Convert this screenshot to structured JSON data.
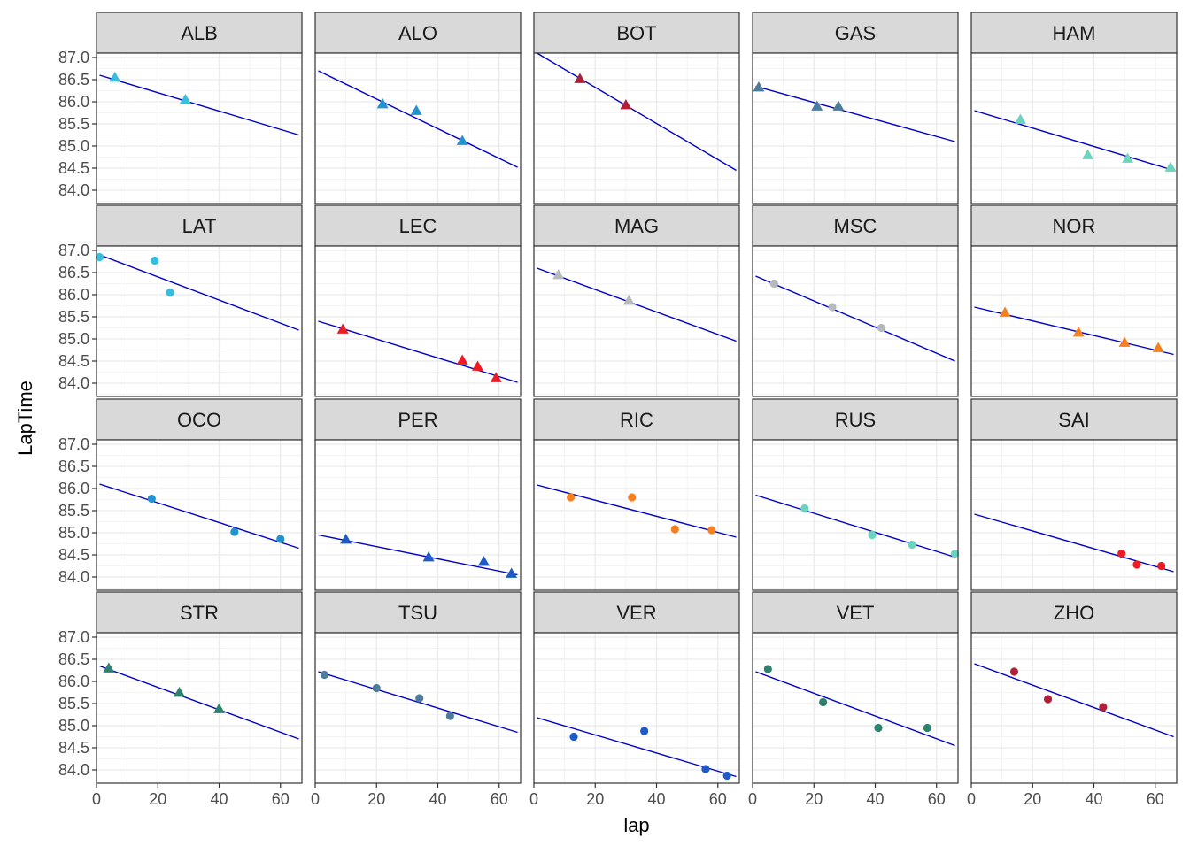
{
  "chart_data": {
    "type": "scatter",
    "xlabel": "lap",
    "ylabel": "LapTime",
    "xlim": [
      0,
      67
    ],
    "ylim": [
      83.7,
      87.1
    ],
    "x_ticks": [
      "0",
      "20",
      "40",
      "60"
    ],
    "y_ticks": [
      "84.0",
      "84.5",
      "85.0",
      "85.5",
      "86.0",
      "86.5",
      "87.0"
    ],
    "x_tick_values": [
      0,
      20,
      40,
      60
    ],
    "y_tick_values": [
      84.0,
      84.5,
      85.0,
      85.5,
      86.0,
      86.5,
      87.0
    ],
    "grid": true,
    "trend_line_color": "#0000CC",
    "facets": [
      {
        "label": "ALB",
        "color": "#37BEDD",
        "shape": "triangle",
        "points": [
          {
            "x": 6,
            "y": 86.55
          },
          {
            "x": 29,
            "y": 86.05
          }
        ],
        "fit": {
          "x": [
            1,
            66
          ],
          "y": [
            86.6,
            85.25
          ]
        }
      },
      {
        "label": "ALO",
        "color": "#2293D1",
        "shape": "triangle",
        "points": [
          {
            "x": 22,
            "y": 85.95
          },
          {
            "x": 33,
            "y": 85.8
          },
          {
            "x": 48,
            "y": 85.12
          }
        ],
        "fit": {
          "x": [
            1,
            66
          ],
          "y": [
            86.7,
            84.52
          ]
        }
      },
      {
        "label": "BOT",
        "color": "#B12039",
        "shape": "triangle",
        "points": [
          {
            "x": 15,
            "y": 86.52
          },
          {
            "x": 30,
            "y": 85.93
          }
        ],
        "fit": {
          "x": [
            1,
            66
          ],
          "y": [
            87.1,
            84.45
          ]
        }
      },
      {
        "label": "GAS",
        "color": "#4E7C9B",
        "shape": "triangle",
        "points": [
          {
            "x": 2,
            "y": 86.33
          },
          {
            "x": 21,
            "y": 85.9
          },
          {
            "x": 28,
            "y": 85.9
          }
        ],
        "fit": {
          "x": [
            1,
            66
          ],
          "y": [
            86.35,
            85.1
          ]
        }
      },
      {
        "label": "HAM",
        "color": "#6CD3BF",
        "shape": "triangle",
        "points": [
          {
            "x": 16,
            "y": 85.6
          },
          {
            "x": 38,
            "y": 84.8
          },
          {
            "x": 51,
            "y": 84.72
          },
          {
            "x": 65,
            "y": 84.52
          }
        ],
        "fit": {
          "x": [
            1,
            66
          ],
          "y": [
            85.8,
            84.45
          ]
        }
      },
      {
        "label": "LAT",
        "color": "#37BEDD",
        "shape": "circle",
        "points": [
          {
            "x": 1,
            "y": 86.85
          },
          {
            "x": 19,
            "y": 86.77
          },
          {
            "x": 24,
            "y": 86.05
          }
        ],
        "fit": {
          "x": [
            1,
            66
          ],
          "y": [
            86.9,
            85.2
          ]
        }
      },
      {
        "label": "LEC",
        "color": "#ED1C24",
        "shape": "triangle",
        "points": [
          {
            "x": 9,
            "y": 85.22
          },
          {
            "x": 48,
            "y": 84.52
          },
          {
            "x": 53,
            "y": 84.38
          },
          {
            "x": 59,
            "y": 84.12
          }
        ],
        "fit": {
          "x": [
            1,
            66
          ],
          "y": [
            85.4,
            84.02
          ]
        }
      },
      {
        "label": "MAG",
        "color": "#B6BABD",
        "shape": "triangle",
        "points": [
          {
            "x": 8,
            "y": 86.45
          },
          {
            "x": 31,
            "y": 85.87
          }
        ],
        "fit": {
          "x": [
            1,
            66
          ],
          "y": [
            86.6,
            84.95
          ]
        }
      },
      {
        "label": "MSC",
        "color": "#B6BABD",
        "shape": "circle",
        "points": [
          {
            "x": 7,
            "y": 86.25
          },
          {
            "x": 26,
            "y": 85.72
          },
          {
            "x": 42,
            "y": 85.25
          }
        ],
        "fit": {
          "x": [
            1,
            66
          ],
          "y": [
            86.42,
            84.5
          ]
        }
      },
      {
        "label": "NOR",
        "color": "#F58020",
        "shape": "triangle",
        "points": [
          {
            "x": 11,
            "y": 85.6
          },
          {
            "x": 35,
            "y": 85.15
          },
          {
            "x": 50,
            "y": 84.92
          },
          {
            "x": 61,
            "y": 84.8
          }
        ],
        "fit": {
          "x": [
            1,
            66
          ],
          "y": [
            85.72,
            84.65
          ]
        }
      },
      {
        "label": "OCO",
        "color": "#2293D1",
        "shape": "circle",
        "points": [
          {
            "x": 18,
            "y": 85.77
          },
          {
            "x": 45,
            "y": 85.02
          },
          {
            "x": 60,
            "y": 84.86
          }
        ],
        "fit": {
          "x": [
            1,
            66
          ],
          "y": [
            86.1,
            84.65
          ]
        }
      },
      {
        "label": "PER",
        "color": "#1E5BC6",
        "shape": "triangle",
        "points": [
          {
            "x": 10,
            "y": 84.85
          },
          {
            "x": 37,
            "y": 84.45
          },
          {
            "x": 55,
            "y": 84.35
          },
          {
            "x": 64,
            "y": 84.08
          }
        ],
        "fit": {
          "x": [
            1,
            66
          ],
          "y": [
            84.95,
            84.05
          ]
        }
      },
      {
        "label": "RIC",
        "color": "#F58020",
        "shape": "circle",
        "points": [
          {
            "x": 12,
            "y": 85.8
          },
          {
            "x": 32,
            "y": 85.8
          },
          {
            "x": 46,
            "y": 85.08
          },
          {
            "x": 58,
            "y": 85.06
          }
        ],
        "fit": {
          "x": [
            1,
            66
          ],
          "y": [
            86.08,
            84.9
          ]
        }
      },
      {
        "label": "RUS",
        "color": "#6CD3BF",
        "shape": "circle",
        "points": [
          {
            "x": 17,
            "y": 85.55
          },
          {
            "x": 39,
            "y": 84.95
          },
          {
            "x": 52,
            "y": 84.73
          },
          {
            "x": 66,
            "y": 84.53
          }
        ],
        "fit": {
          "x": [
            1,
            66
          ],
          "y": [
            85.85,
            84.45
          ]
        }
      },
      {
        "label": "SAI",
        "color": "#ED1C24",
        "shape": "circle",
        "points": [
          {
            "x": 49,
            "y": 84.53
          },
          {
            "x": 54,
            "y": 84.28
          },
          {
            "x": 62,
            "y": 84.25
          }
        ],
        "fit": {
          "x": [
            1,
            66
          ],
          "y": [
            85.42,
            84.12
          ]
        }
      },
      {
        "label": "STR",
        "color": "#2D826D",
        "shape": "triangle",
        "points": [
          {
            "x": 4,
            "y": 86.3
          },
          {
            "x": 27,
            "y": 85.75
          },
          {
            "x": 40,
            "y": 85.38
          }
        ],
        "fit": {
          "x": [
            1,
            66
          ],
          "y": [
            86.35,
            84.7
          ]
        }
      },
      {
        "label": "TSU",
        "color": "#4E7C9B",
        "shape": "circle",
        "points": [
          {
            "x": 3,
            "y": 86.15
          },
          {
            "x": 20,
            "y": 85.85
          },
          {
            "x": 34,
            "y": 85.62
          },
          {
            "x": 44,
            "y": 85.22
          }
        ],
        "fit": {
          "x": [
            1,
            66
          ],
          "y": [
            86.22,
            84.85
          ]
        }
      },
      {
        "label": "VER",
        "color": "#1E5BC6",
        "shape": "circle",
        "points": [
          {
            "x": 13,
            "y": 84.75
          },
          {
            "x": 36,
            "y": 84.88
          },
          {
            "x": 56,
            "y": 84.02
          },
          {
            "x": 63,
            "y": 83.87
          }
        ],
        "fit": {
          "x": [
            1,
            66
          ],
          "y": [
            85.18,
            83.85
          ]
        }
      },
      {
        "label": "VET",
        "color": "#2D826D",
        "shape": "circle",
        "points": [
          {
            "x": 5,
            "y": 86.28
          },
          {
            "x": 23,
            "y": 85.53
          },
          {
            "x": 41,
            "y": 84.95
          },
          {
            "x": 57,
            "y": 84.95
          }
        ],
        "fit": {
          "x": [
            1,
            66
          ],
          "y": [
            86.22,
            84.55
          ]
        }
      },
      {
        "label": "ZHO",
        "color": "#B12039",
        "shape": "circle",
        "points": [
          {
            "x": 14,
            "y": 86.22
          },
          {
            "x": 25,
            "y": 85.6
          },
          {
            "x": 43,
            "y": 85.42
          }
        ],
        "fit": {
          "x": [
            1,
            66
          ],
          "y": [
            86.4,
            84.75
          ]
        }
      }
    ]
  }
}
